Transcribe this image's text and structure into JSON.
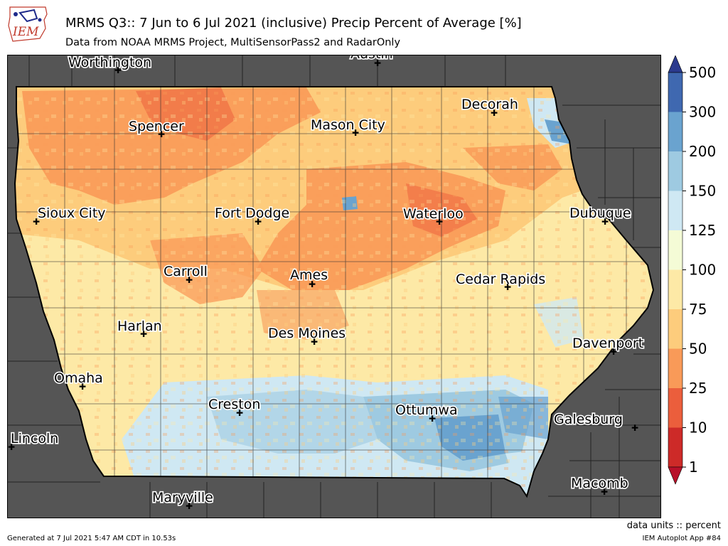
{
  "header": {
    "logo_text": "IEM",
    "title": "MRMS Q3:: 7 Jun to 6 Jul 2021 (inclusive) Precip Percent of Average [%]",
    "subtitle": "Data from NOAA MRMS Project, MultiSensorPass2 and RadarOnly"
  },
  "map": {
    "cities": [
      {
        "name": "Worthington"
      },
      {
        "name": "Austin"
      },
      {
        "name": "Spencer"
      },
      {
        "name": "Mason City"
      },
      {
        "name": "Decorah"
      },
      {
        "name": "Sioux City"
      },
      {
        "name": "Fort Dodge"
      },
      {
        "name": "Waterloo"
      },
      {
        "name": "Dubuque"
      },
      {
        "name": "Carroll"
      },
      {
        "name": "Ames"
      },
      {
        "name": "Cedar Rapids"
      },
      {
        "name": "Harlan"
      },
      {
        "name": "Des Moines"
      },
      {
        "name": "Davenport"
      },
      {
        "name": "Omaha"
      },
      {
        "name": "Creston"
      },
      {
        "name": "Ottumwa"
      },
      {
        "name": "Galesburg"
      },
      {
        "name": "Lincoln"
      },
      {
        "name": "Macomb"
      },
      {
        "name": "Maryville"
      }
    ]
  },
  "colorbar": {
    "labels": [
      "500",
      "300",
      "200",
      "150",
      "125",
      "100",
      "75",
      "50",
      "25",
      "10",
      "1"
    ],
    "colors": [
      "#2b3a8e",
      "#3f68b0",
      "#6aa3cf",
      "#9ecae1",
      "#cfe8f3",
      "#f4fbd6",
      "#fde9a6",
      "#fdcc7c",
      "#f99a58",
      "#eb5e3c",
      "#cd2a28",
      "#b8102a"
    ]
  },
  "footer": {
    "units": "data units :: percent",
    "generated": "Generated at 7 Jul 2021 5:47 AM CDT in 10.53s",
    "app": "IEM Autoplot App #84"
  }
}
